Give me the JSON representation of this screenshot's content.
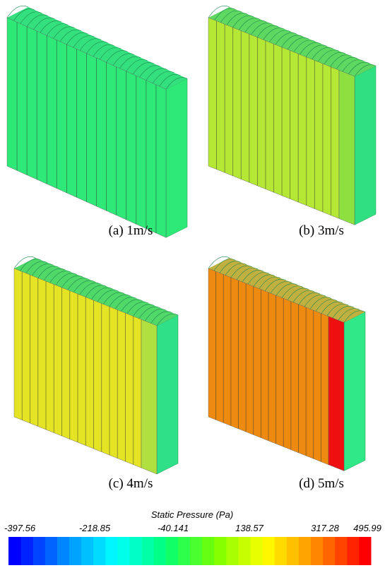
{
  "panels": [
    {
      "caption": "(a)  1m/s"
    },
    {
      "caption": "(b)  3m/s"
    },
    {
      "caption": "(c)  4m/s"
    },
    {
      "caption": "(d)  5m/s"
    }
  ],
  "colorbar": {
    "title": "Static Pressure (Pa)",
    "ticks": [
      "-397.56",
      "-218.85",
      "-40.141",
      "138.57",
      "317.28",
      "495.99"
    ]
  }
}
